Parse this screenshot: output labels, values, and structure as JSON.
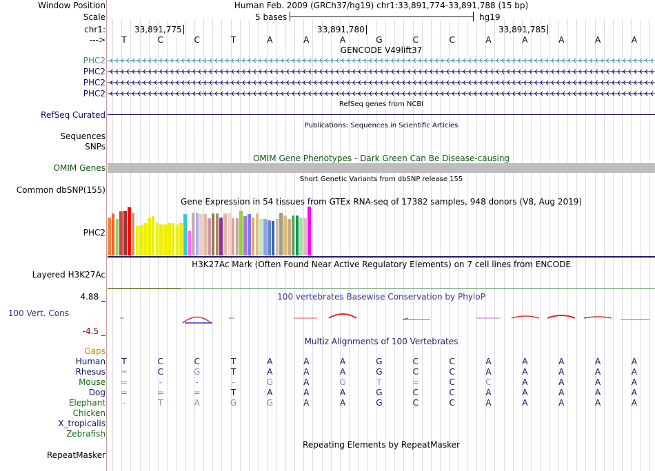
{
  "header": {
    "window_position_label": "Window Position",
    "window_position_value": "Human Feb. 2009 (GRCh37/hg19)   chr1:33,891,774-33,891,788 (15 bp)",
    "scale_label": "Scale",
    "scale_text": "5 bases",
    "scale_assembly": "hg19",
    "chrom_label": "chr1:",
    "strand_label": "--->",
    "coords": [
      "33,891,775",
      "33,891,780",
      "33,891,785"
    ]
  },
  "bases": [
    "T",
    "C",
    "C",
    "T",
    "A",
    "A",
    "A",
    "G",
    "C",
    "C",
    "A",
    "A",
    "A",
    "A",
    "A"
  ],
  "gencode": {
    "title": "GENCODE V49lift37",
    "transcripts": [
      "PHC2",
      "PHC2",
      "PHC2",
      "PHC2"
    ],
    "first_color": "#3d8fa6",
    "color": "#0d0d60"
  },
  "refseq": {
    "title": "RefSeq genes from NCBI",
    "label": "RefSeq Curated"
  },
  "publications": {
    "title": "Publications: Sequences in Scientific Articles",
    "label1": "Sequences",
    "label2": "SNPs"
  },
  "omim": {
    "title": "OMIM Gene Phenotypes - Dark Green Can Be Disease-causing",
    "label": "OMIM Genes",
    "color": "#115511"
  },
  "dbsnp": {
    "title": "Short Genetic Variants from dbSNP release 155",
    "label": "Common dbSNP(155)"
  },
  "gtex": {
    "title": "Gene Expression in 54 tissues from GTEx RNA-seq of 17382 samples, 948 donors (V8, Aug 2019)",
    "label": "PHC2",
    "bars": [
      {
        "v": 0.78,
        "c": "#ff8040"
      },
      {
        "v": 0.86,
        "c": "#ff6020"
      },
      {
        "v": 0.74,
        "c": "#99cc66"
      },
      {
        "v": 0.9,
        "c": "#cc4444"
      },
      {
        "v": 0.92,
        "c": "#993333"
      },
      {
        "v": 0.98,
        "c": "#ff0000"
      },
      {
        "v": 0.88,
        "c": "#cc9966"
      },
      {
        "v": 0.6,
        "c": "#eeee00"
      },
      {
        "v": 0.62,
        "c": "#eeee00"
      },
      {
        "v": 0.66,
        "c": "#eeee00"
      },
      {
        "v": 0.78,
        "c": "#eeee00"
      },
      {
        "v": 0.8,
        "c": "#eeee00"
      },
      {
        "v": 0.66,
        "c": "#eeee00"
      },
      {
        "v": 0.64,
        "c": "#eeee00"
      },
      {
        "v": 0.64,
        "c": "#eeee00"
      },
      {
        "v": 0.66,
        "c": "#eeee00"
      },
      {
        "v": 0.66,
        "c": "#eeee00"
      },
      {
        "v": 0.64,
        "c": "#eeee00"
      },
      {
        "v": 0.66,
        "c": "#eeee00"
      },
      {
        "v": 0.84,
        "c": "#33cccc"
      },
      {
        "v": 0.5,
        "c": "#ff66ff"
      },
      {
        "v": 0.88,
        "c": "#ccaaaa"
      },
      {
        "v": 0.88,
        "c": "#aaaaff"
      },
      {
        "v": 0.84,
        "c": "#eeccbb"
      },
      {
        "v": 0.84,
        "c": "#ddbbaa"
      },
      {
        "v": 0.76,
        "c": "#cc99aa"
      },
      {
        "v": 0.86,
        "c": "#997755"
      },
      {
        "v": 0.86,
        "c": "#aa8866"
      },
      {
        "v": 0.78,
        "c": "#883399"
      },
      {
        "v": 0.86,
        "c": "#ddbbaa"
      },
      {
        "v": 0.88,
        "c": "#ffcccc"
      },
      {
        "v": 0.76,
        "c": "#ccaa99"
      },
      {
        "v": 0.76,
        "c": "#bbaa99"
      },
      {
        "v": 0.92,
        "c": "#99cc44"
      },
      {
        "v": 0.8,
        "c": "#aa77cc"
      },
      {
        "v": 0.84,
        "c": "#7777ff"
      },
      {
        "v": 0.78,
        "c": "#ddaa66"
      },
      {
        "v": 0.86,
        "c": "#ddbb88"
      },
      {
        "v": 0.74,
        "c": "#bbeeaa"
      },
      {
        "v": 0.74,
        "c": "#9999ff"
      },
      {
        "v": 0.72,
        "c": "#6688cc"
      },
      {
        "v": 0.7,
        "c": "#3366aa"
      },
      {
        "v": 0.74,
        "c": "#ccbbaa"
      },
      {
        "v": 0.88,
        "c": "#aa9988"
      },
      {
        "v": 0.82,
        "c": "#ddbb77"
      },
      {
        "v": 0.74,
        "c": "#ccaa88"
      },
      {
        "v": 0.82,
        "c": "#55aa55"
      },
      {
        "v": 0.82,
        "c": "#009944"
      },
      {
        "v": 0.78,
        "c": "#aaddaa"
      },
      {
        "v": 0.76,
        "c": "#ddbbbb"
      },
      {
        "v": 1.0,
        "c": "#ff00ff"
      }
    ]
  },
  "h3k27ac": {
    "title": "H3K27Ac Mark (Often Found Near Active Regulatory Elements) on 7 cell lines from ENCODE",
    "label": "Layered H3K27Ac"
  },
  "cons": {
    "title": "100 vertebrates Basewise Conservation by PhyloP",
    "label": "100 Vert. Cons",
    "max": "4.88 _",
    "min": "-4.5 _",
    "color": "#333399",
    "min_color": "#880000"
  },
  "multiz": {
    "title": "Multiz Alignments of 100 Vertebrates",
    "species": [
      {
        "name": "Gaps",
        "color": "#cc8800",
        "seq": []
      },
      {
        "name": "Human",
        "color": "#111166",
        "seq": [
          "T",
          "C",
          "C",
          "T",
          "A",
          "A",
          "A",
          "G",
          "C",
          "C",
          "A",
          "A",
          "A",
          "A",
          "A"
        ]
      },
      {
        "name": "Rhesus",
        "color": "#111166",
        "seq": [
          "=",
          "C",
          "G",
          "T",
          "A",
          "A",
          "A",
          "G",
          "C",
          "C",
          "A",
          "A",
          "A",
          "A",
          "A"
        ]
      },
      {
        "name": "Mouse",
        "color": "#116611",
        "seq": [
          "=",
          "-",
          "-",
          "-",
          "G",
          "A",
          "G",
          "T",
          "=",
          "C",
          "C",
          "A",
          "A",
          "A",
          "A"
        ]
      },
      {
        "name": "Dog",
        "color": "#111166",
        "seq": [
          "=",
          "=",
          "=",
          "T",
          "A",
          "A",
          "A",
          "G",
          "C",
          "C",
          "A",
          "A",
          "A",
          "A",
          "A"
        ]
      },
      {
        "name": "Elephant",
        "color": "#116611",
        "seq": [
          "-",
          "T",
          "A",
          "G",
          "G",
          "A",
          "A",
          "G",
          "C",
          "C",
          "A",
          "A",
          "A",
          "A",
          "A"
        ]
      },
      {
        "name": "Chicken",
        "color": "#116611",
        "seq": []
      },
      {
        "name": "X_tropicalis",
        "color": "#111166",
        "seq": []
      },
      {
        "name": "Zebrafish",
        "color": "#116611",
        "seq": []
      }
    ]
  },
  "repeatmasker": {
    "title": "Repeating Elements by RepeatMasker",
    "label": "RepeatMasker"
  }
}
